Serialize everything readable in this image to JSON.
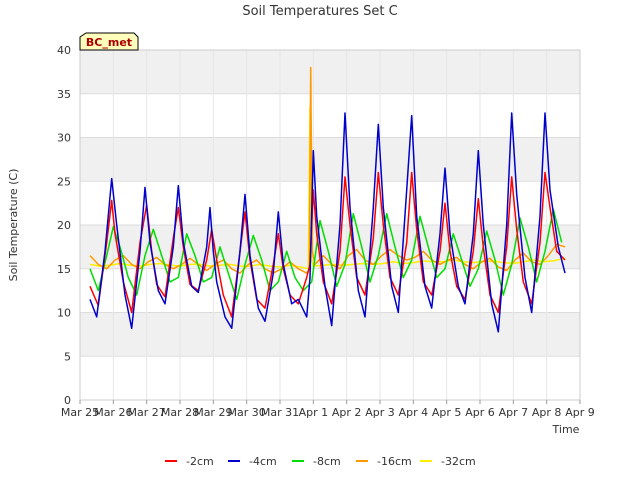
{
  "chart_data": {
    "type": "line",
    "title": "Soil Temperatures Set C",
    "xlabel": "Time",
    "ylabel": "Soil Temperature (C)",
    "ylim": [
      0,
      40
    ],
    "yticks": [
      0,
      5,
      10,
      15,
      20,
      25,
      30,
      35,
      40
    ],
    "xlim": [
      0,
      15
    ],
    "xtick_labels": [
      "Mar 25",
      "Mar 26",
      "Mar 27",
      "Mar 28",
      "Mar 29",
      "Mar 30",
      "Mar 31",
      "Apr 1",
      "Apr 2",
      "Apr 3",
      "Apr 4",
      "Apr 5",
      "Apr 6",
      "Apr 7",
      "Apr 8",
      "Apr 9"
    ],
    "x_units": "days since Mar 25",
    "grid": true,
    "legend_position": "bottom",
    "site_label": "BC_met",
    "series": [
      {
        "name": "-2cm",
        "color": "#ff0000",
        "x": [
          0.3,
          0.55,
          0.8,
          0.95,
          1.05,
          1.3,
          1.55,
          1.8,
          2.0,
          2.15,
          2.3,
          2.55,
          2.8,
          2.95,
          3.1,
          3.3,
          3.55,
          3.8,
          3.95,
          4.1,
          4.3,
          4.55,
          4.8,
          4.95,
          5.1,
          5.3,
          5.55,
          5.8,
          5.95,
          6.1,
          6.3,
          6.55,
          6.8,
          6.9,
          7.0,
          7.1,
          7.3,
          7.55,
          7.8,
          7.95,
          8.1,
          8.3,
          8.55,
          8.8,
          8.95,
          9.1,
          9.3,
          9.55,
          9.8,
          9.95,
          10.1,
          10.3,
          10.55,
          10.8,
          10.95,
          11.1,
          11.3,
          11.55,
          11.8,
          11.95,
          12.1,
          12.3,
          12.55,
          12.8,
          12.95,
          13.1,
          13.3,
          13.55,
          13.8,
          13.95,
          14.1,
          14.3,
          14.55
        ],
        "y": [
          13.0,
          10.8,
          18.0,
          22.8,
          19.0,
          13.5,
          10.0,
          18.0,
          22.3,
          17.0,
          13.2,
          11.8,
          18.5,
          22.0,
          17.5,
          13.2,
          12.5,
          16.0,
          19.5,
          16.0,
          12.0,
          9.5,
          17.0,
          21.5,
          16.0,
          11.5,
          10.5,
          15.5,
          19.0,
          15.0,
          12.0,
          11.0,
          14.0,
          15.5,
          24.0,
          19.0,
          13.5,
          11.0,
          17.0,
          25.5,
          20.0,
          14.0,
          12.0,
          18.5,
          26.0,
          20.0,
          14.0,
          12.0,
          18.0,
          26.0,
          19.5,
          13.5,
          12.0,
          17.0,
          22.5,
          17.0,
          13.0,
          11.5,
          17.0,
          23.0,
          17.5,
          12.0,
          10.0,
          17.5,
          25.5,
          19.5,
          13.5,
          11.0,
          18.0,
          26.0,
          22.0,
          17.0,
          16.0
        ]
      },
      {
        "name": "-4cm",
        "color": "#0000cc",
        "x": [
          0.3,
          0.5,
          0.75,
          0.95,
          1.1,
          1.35,
          1.55,
          1.8,
          1.95,
          2.1,
          2.35,
          2.55,
          2.8,
          2.95,
          3.1,
          3.35,
          3.55,
          3.8,
          3.9,
          4.0,
          4.1,
          4.35,
          4.55,
          4.8,
          4.95,
          5.1,
          5.35,
          5.55,
          5.8,
          5.95,
          6.1,
          6.35,
          6.55,
          6.8,
          6.9,
          7.0,
          7.1,
          7.35,
          7.55,
          7.8,
          7.95,
          8.1,
          8.35,
          8.55,
          8.8,
          8.95,
          9.1,
          9.35,
          9.55,
          9.8,
          9.95,
          10.1,
          10.35,
          10.55,
          10.8,
          10.95,
          11.1,
          11.35,
          11.55,
          11.8,
          11.95,
          12.1,
          12.35,
          12.55,
          12.8,
          12.95,
          13.1,
          13.35,
          13.55,
          13.8,
          13.95,
          14.1,
          14.35,
          14.55
        ],
        "y": [
          11.5,
          9.5,
          17.0,
          25.3,
          20.0,
          12.0,
          8.2,
          17.0,
          24.3,
          18.0,
          12.5,
          11.0,
          17.5,
          24.5,
          18.0,
          13.0,
          12.3,
          17.5,
          22.0,
          17.0,
          13.5,
          9.5,
          8.2,
          17.0,
          23.5,
          16.5,
          10.5,
          9.0,
          14.5,
          21.5,
          15.5,
          11.0,
          11.5,
          9.5,
          14.0,
          28.5,
          21.0,
          13.0,
          8.5,
          20.0,
          32.8,
          22.0,
          12.5,
          9.5,
          22.0,
          31.5,
          22.0,
          13.0,
          10.0,
          24.0,
          32.5,
          21.0,
          13.0,
          10.5,
          19.0,
          26.5,
          19.0,
          13.0,
          11.0,
          19.0,
          28.5,
          20.0,
          11.0,
          7.8,
          20.0,
          32.8,
          23.5,
          14.0,
          10.0,
          21.0,
          32.8,
          24.0,
          17.5,
          14.5
        ]
      },
      {
        "name": "-8cm",
        "color": "#00dd00",
        "x": [
          0.3,
          0.55,
          0.8,
          1.0,
          1.2,
          1.45,
          1.7,
          1.95,
          2.2,
          2.45,
          2.7,
          2.95,
          3.2,
          3.45,
          3.7,
          3.95,
          4.2,
          4.45,
          4.7,
          4.95,
          5.2,
          5.45,
          5.7,
          5.95,
          6.2,
          6.45,
          6.7,
          6.95,
          7.2,
          7.45,
          7.7,
          7.95,
          8.2,
          8.45,
          8.7,
          8.95,
          9.2,
          9.45,
          9.7,
          9.95,
          10.2,
          10.45,
          10.7,
          10.95,
          11.2,
          11.45,
          11.7,
          11.95,
          12.2,
          12.45,
          12.7,
          12.95,
          13.2,
          13.45,
          13.7,
          13.95,
          14.2,
          14.45
        ],
        "y": [
          15.0,
          12.5,
          16.5,
          19.8,
          17.5,
          14.0,
          12.0,
          16.5,
          19.5,
          16.5,
          13.5,
          14.0,
          19.0,
          16.5,
          13.5,
          14.0,
          17.5,
          14.5,
          11.5,
          15.5,
          18.8,
          16.0,
          12.5,
          13.5,
          17.0,
          14.0,
          12.5,
          13.5,
          20.5,
          17.0,
          13.0,
          15.5,
          21.3,
          17.5,
          13.5,
          16.5,
          21.3,
          17.5,
          14.0,
          16.0,
          21.0,
          17.5,
          14.0,
          15.0,
          19.0,
          16.0,
          13.0,
          15.0,
          19.3,
          16.0,
          12.0,
          15.5,
          20.8,
          17.5,
          13.5,
          17.0,
          21.8,
          18.0
        ]
      },
      {
        "name": "-16cm",
        "color": "#ff9900",
        "x": [
          0.3,
          0.55,
          0.8,
          1.05,
          1.3,
          1.55,
          1.8,
          2.05,
          2.3,
          2.55,
          2.8,
          3.05,
          3.3,
          3.55,
          3.8,
          4.05,
          4.3,
          4.55,
          4.8,
          5.05,
          5.3,
          5.55,
          5.8,
          6.05,
          6.3,
          6.55,
          6.8,
          6.88,
          6.92,
          6.97,
          7.05,
          7.3,
          7.55,
          7.8,
          8.05,
          8.3,
          8.55,
          8.8,
          9.05,
          9.3,
          9.55,
          9.8,
          10.05,
          10.3,
          10.55,
          10.8,
          11.05,
          11.3,
          11.55,
          11.8,
          12.05,
          12.3,
          12.55,
          12.8,
          13.05,
          13.3,
          13.55,
          13.8,
          14.05,
          14.3,
          14.55
        ],
        "y": [
          16.5,
          15.5,
          15.0,
          16.0,
          16.5,
          15.5,
          15.0,
          15.8,
          16.3,
          15.5,
          15.0,
          15.5,
          16.2,
          15.5,
          14.8,
          15.5,
          16.0,
          15.0,
          14.5,
          15.5,
          16.0,
          15.0,
          14.5,
          15.0,
          15.8,
          15.0,
          14.5,
          15.0,
          38.0,
          17.0,
          15.5,
          16.5,
          15.5,
          15.0,
          16.5,
          17.2,
          16.0,
          15.5,
          16.5,
          17.2,
          16.5,
          16.0,
          16.3,
          17.0,
          16.0,
          15.5,
          16.0,
          16.3,
          15.5,
          15.0,
          15.8,
          16.2,
          15.2,
          14.8,
          16.0,
          16.8,
          15.8,
          15.5,
          16.5,
          17.8,
          17.5
        ]
      },
      {
        "name": "-32cm",
        "color": "#ffee00",
        "x": [
          0.3,
          0.6,
          0.9,
          1.2,
          1.5,
          1.8,
          2.1,
          2.4,
          2.7,
          3.0,
          3.3,
          3.6,
          3.9,
          4.2,
          4.5,
          4.8,
          5.1,
          5.4,
          5.7,
          6.0,
          6.3,
          6.6,
          6.85,
          6.9,
          6.95,
          7.0,
          7.3,
          7.6,
          7.9,
          8.2,
          8.5,
          8.8,
          9.1,
          9.4,
          9.7,
          10.0,
          10.3,
          10.6,
          10.9,
          11.2,
          11.5,
          11.8,
          12.1,
          12.4,
          12.7,
          13.0,
          13.3,
          13.6,
          13.9,
          14.2,
          14.55
        ],
        "y": [
          15.5,
          15.3,
          15.4,
          15.6,
          15.4,
          15.3,
          15.5,
          15.6,
          15.4,
          15.3,
          15.5,
          15.5,
          15.3,
          15.4,
          15.5,
          15.3,
          15.3,
          15.5,
          15.3,
          15.2,
          15.4,
          15.2,
          15.0,
          33.5,
          16.0,
          15.3,
          15.4,
          15.5,
          15.4,
          15.5,
          15.6,
          15.5,
          15.6,
          15.8,
          15.6,
          15.7,
          15.9,
          15.8,
          15.8,
          16.0,
          15.8,
          15.7,
          15.8,
          15.9,
          15.7,
          15.6,
          15.8,
          16.0,
          15.8,
          15.9,
          16.2
        ]
      }
    ]
  }
}
